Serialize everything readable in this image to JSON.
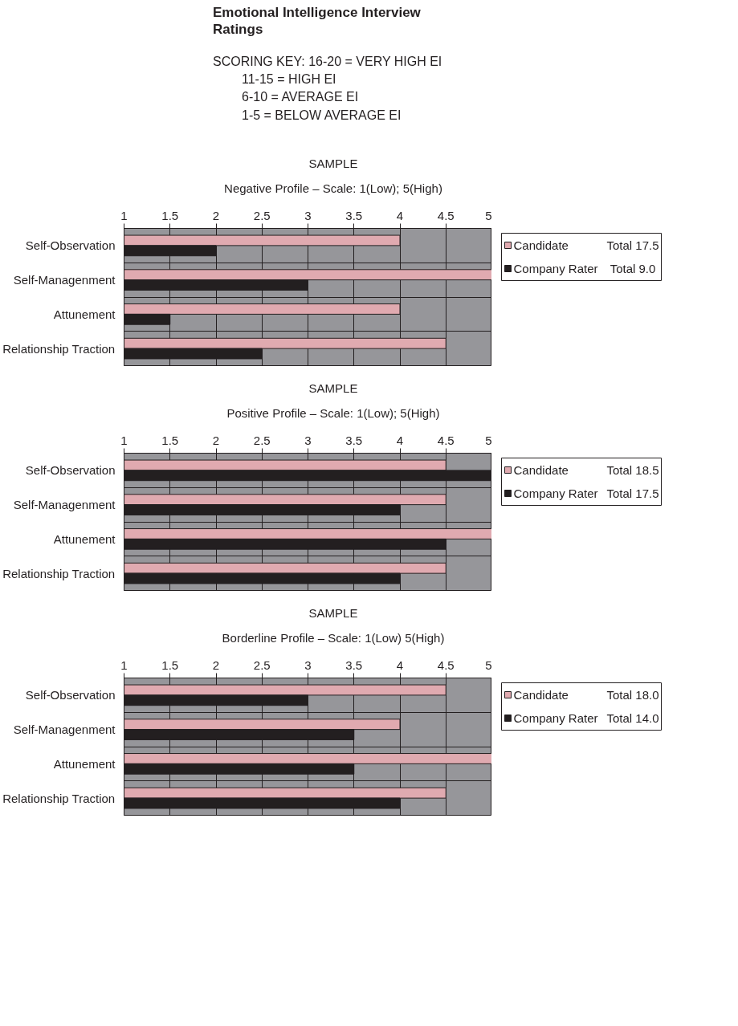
{
  "chart_data": [
    {
      "type": "other",
      "title": "Emotional Intelligence Interview Ratings",
      "annotations": [
        "SCORING KEY: 16-20 = VERY HIGH EI",
        "11-15 = HIGH EI",
        "6-10 = AVERAGE EI",
        "1-5 = BELOW AVERAGE EI"
      ]
    },
    {
      "type": "bar",
      "orientation": "horizontal",
      "title": "SAMPLE",
      "subtitle": "Negative Profile – Scale: 1(Low); 5(High)",
      "categories": [
        "Self-Observation",
        "Self-Managenment",
        "Attunement",
        "Relationship Traction"
      ],
      "series": [
        {
          "name": "Candidate",
          "color": "#e0aab0",
          "values": [
            4,
            5,
            4,
            4.5
          ]
        },
        {
          "name": "Company Rater",
          "color": "#231f20",
          "values": [
            2,
            3,
            1.5,
            2.5
          ]
        }
      ],
      "annotations": [
        "Total 17.5",
        "Total  9.0"
      ],
      "xlim": [
        1,
        5
      ],
      "xticks": [
        1,
        1.5,
        2,
        2.5,
        3,
        3.5,
        4,
        4.5,
        5
      ],
      "grid": true,
      "legend": "right"
    },
    {
      "type": "bar",
      "orientation": "horizontal",
      "title": "SAMPLE",
      "subtitle": "Positive Profile – Scale: 1(Low); 5(High)",
      "categories": [
        "Self-Observation",
        "Self-Managenment",
        "Attunement",
        "Relationship Traction"
      ],
      "series": [
        {
          "name": "Candidate",
          "color": "#e0aab0",
          "values": [
            4.5,
            4.5,
            5,
            4.5
          ]
        },
        {
          "name": "Company Rater",
          "color": "#231f20",
          "values": [
            5,
            4,
            4.5,
            4
          ]
        }
      ],
      "annotations": [
        "Total 18.5",
        "Total 17.5"
      ],
      "xlim": [
        1,
        5
      ],
      "xticks": [
        1,
        1.5,
        2,
        2.5,
        3,
        3.5,
        4,
        4.5,
        5
      ],
      "grid": true,
      "legend": "right"
    },
    {
      "type": "bar",
      "orientation": "horizontal",
      "title": "SAMPLE",
      "subtitle": "Borderline Profile – Scale: 1(Low) 5(High)",
      "categories": [
        "Self-Observation",
        "Self-Managenment",
        "Attunement",
        "Relationship Traction"
      ],
      "series": [
        {
          "name": "Candidate",
          "color": "#e0aab0",
          "values": [
            4.5,
            4,
            5,
            4.5
          ]
        },
        {
          "name": "Company Rater",
          "color": "#231f20",
          "values": [
            3,
            3.5,
            3.5,
            4
          ]
        }
      ],
      "annotations": [
        "Total 18.0",
        "Total 14.0"
      ],
      "xlim": [
        1,
        5
      ],
      "xticks": [
        1,
        1.5,
        2,
        2.5,
        3,
        3.5,
        4,
        4.5,
        5
      ],
      "grid": true,
      "legend": "right"
    }
  ]
}
